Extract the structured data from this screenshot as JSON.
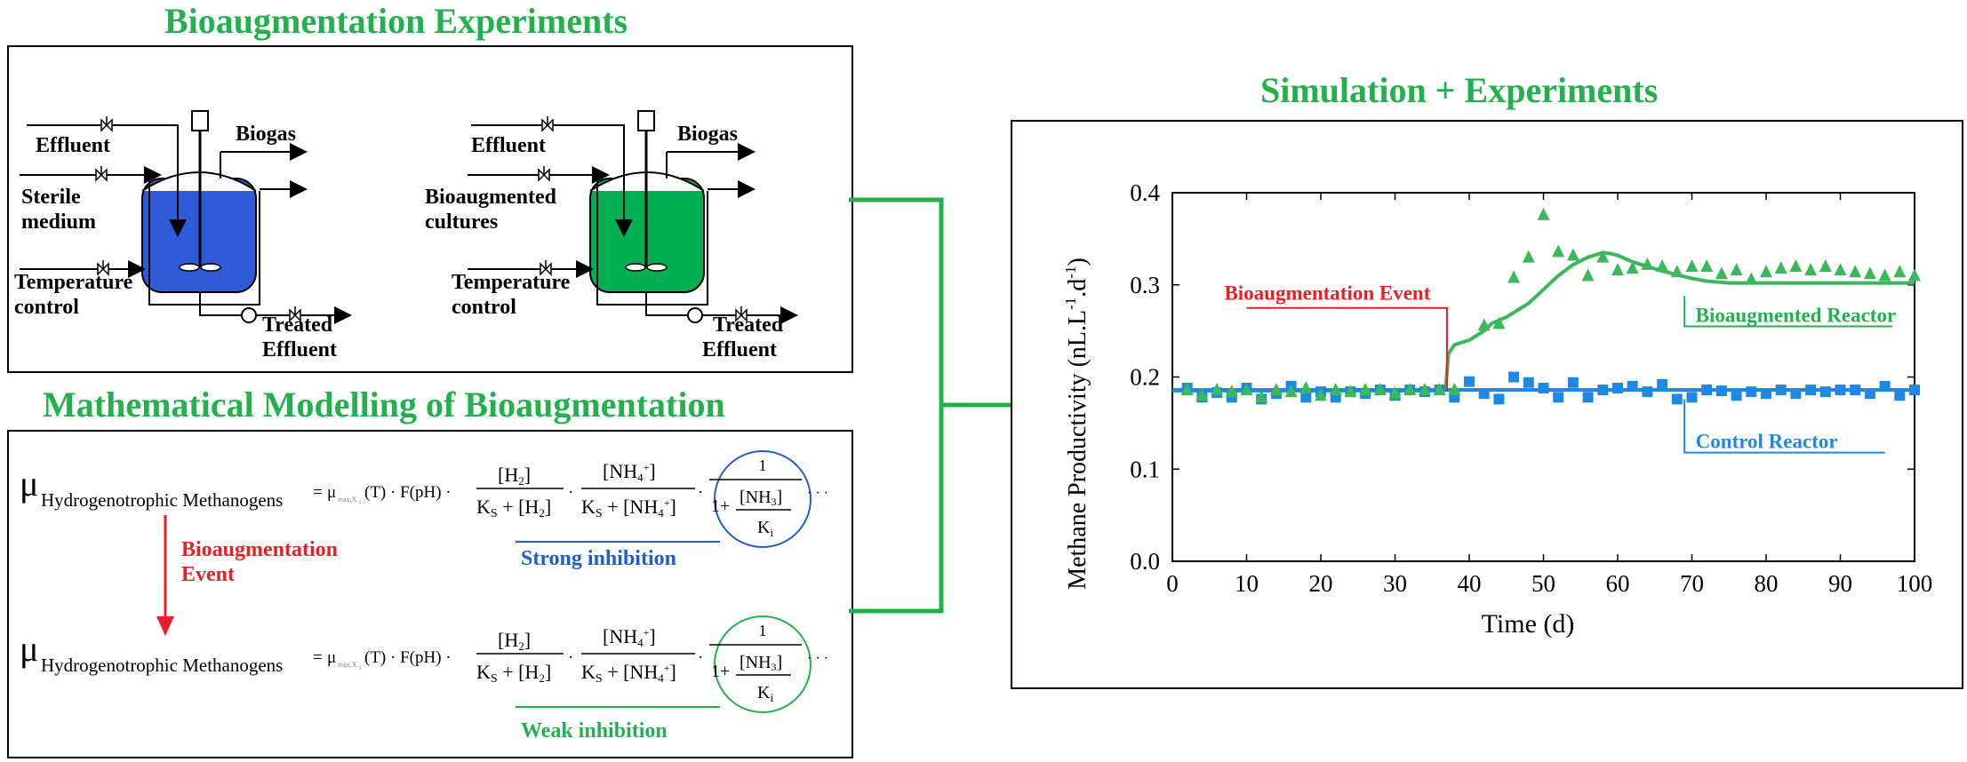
{
  "titles": {
    "bioaugmentation_experiments": "Bioaugmentation  Experiments",
    "mathematical_modelling": "Mathematical  Modelling  of  Bioaugmentation",
    "simulation_experiments": "Simulation  + Experiments"
  },
  "reactor_control": {
    "effluent": "Effluent",
    "feed_line1": "Sterile",
    "feed_line2": "medium",
    "temp_line1": "Temperature",
    "temp_line2": "control",
    "biogas": "Biogas",
    "treated_line1": "Treated",
    "treated_line2": "Effluent",
    "liquid_color": "#2f5bd8"
  },
  "reactor_bio": {
    "effluent": "Effluent",
    "feed_line1": "Bioaugmented",
    "feed_line2": "cultures",
    "temp_line1": "Temperature",
    "temp_line2": "control",
    "biogas": "Biogas",
    "treated_line1": "Treated",
    "treated_line2": "Effluent",
    "liquid_color": "#00b050"
  },
  "equations": {
    "mu": "μ",
    "mu_subscript": "Hydrogenotrophic Methanogens",
    "equals": "=",
    "mu_max": "μ",
    "mu_max_sub": "max,X",
    "mu_max_sub2": "i",
    "temp_term": "(T) · F(pH) ·",
    "h2_num": "[H",
    "h2_sub": "2",
    "h2_close": "]",
    "ks": "K",
    "ks_sub": "S",
    "plus": " + ",
    "dot": "·",
    "nh4_num": "[NH",
    "nh4_sub": "4",
    "nh4_sup": "+",
    "nh4_close": "]",
    "one": "1",
    "one_plus": "1+",
    "nh3": "[NH",
    "nh3_sub": "3",
    "nh3_close": "]",
    "ki": "K",
    "ki_sub": "i",
    "ellipsis": "· · ·",
    "event_line1": "Bioaugmentation",
    "event_line2": "Event",
    "strong_inhibition": "Strong inhibition",
    "weak_inhibition": "Weak inhibition",
    "strong_color": "#1f5fc8",
    "weak_color": "#22b14c",
    "event_color": "#ee1c24"
  },
  "chart_data": {
    "type": "scatter",
    "xlabel": "Time (d)",
    "ylabel": "Methane Productivity (nL.L",
    "ylabel_sup1": "-1",
    "ylabel_mid": ".d",
    "ylabel_sup2": "-1",
    "ylabel_end": ")",
    "xlim": [
      0,
      100
    ],
    "ylim": [
      0,
      0.4
    ],
    "xticks": [
      0,
      10,
      20,
      30,
      40,
      50,
      60,
      70,
      80,
      90,
      100
    ],
    "yticks": [
      0.0,
      0.1,
      0.2,
      0.3,
      0.4
    ],
    "ytick_labels": [
      "0.0",
      "0.1",
      "0.2",
      "0.3",
      "0.4"
    ],
    "annotations": {
      "event": "Bioaugmentation Event",
      "event_x": 37,
      "bio_reactor": "Bioaugmented Reactor",
      "control_reactor": "Control Reactor"
    },
    "series": [
      {
        "name": "Control Reactor",
        "marker": "square",
        "color": "#1e88e5",
        "x": [
          2,
          4,
          6,
          8,
          10,
          12,
          14,
          16,
          18,
          20,
          22,
          24,
          26,
          28,
          30,
          32,
          34,
          36,
          38,
          40,
          42,
          44,
          46,
          48,
          50,
          52,
          54,
          56,
          58,
          60,
          62,
          64,
          66,
          68,
          70,
          72,
          74,
          76,
          78,
          80,
          82,
          84,
          86,
          88,
          90,
          92,
          94,
          96,
          98,
          100
        ],
        "y": [
          0.188,
          0.178,
          0.183,
          0.178,
          0.188,
          0.176,
          0.182,
          0.19,
          0.178,
          0.184,
          0.178,
          0.184,
          0.182,
          0.186,
          0.18,
          0.186,
          0.184,
          0.186,
          0.178,
          0.195,
          0.182,
          0.176,
          0.2,
          0.194,
          0.188,
          0.178,
          0.194,
          0.178,
          0.186,
          0.188,
          0.19,
          0.184,
          0.192,
          0.176,
          0.178,
          0.186,
          0.185,
          0.18,
          0.184,
          0.182,
          0.186,
          0.182,
          0.186,
          0.184,
          0.186,
          0.186,
          0.182,
          0.19,
          0.18,
          0.186
        ]
      },
      {
        "name": "Bioaugmented Reactor",
        "marker": "triangle",
        "color": "#3cb85c",
        "x": [
          2,
          4,
          6,
          8,
          10,
          12,
          14,
          16,
          18,
          20,
          22,
          24,
          26,
          28,
          30,
          32,
          34,
          36,
          38,
          42,
          44,
          46,
          48,
          50,
          52,
          54,
          56,
          58,
          60,
          62,
          64,
          66,
          68,
          70,
          72,
          74,
          76,
          78,
          80,
          82,
          84,
          86,
          88,
          90,
          92,
          94,
          96,
          98,
          100
        ],
        "y": [
          0.186,
          0.18,
          0.186,
          0.184,
          0.186,
          0.178,
          0.186,
          0.184,
          0.188,
          0.18,
          0.186,
          0.184,
          0.186,
          0.186,
          0.182,
          0.186,
          0.186,
          0.186,
          0.186,
          0.256,
          0.258,
          0.308,
          0.33,
          0.376,
          0.336,
          0.332,
          0.31,
          0.33,
          0.316,
          0.318,
          0.322,
          0.32,
          0.314,
          0.32,
          0.32,
          0.312,
          0.316,
          0.306,
          0.314,
          0.318,
          0.32,
          0.316,
          0.32,
          0.316,
          0.314,
          0.312,
          0.31,
          0.314,
          0.31
        ]
      },
      {
        "name": "",
        "type": "line",
        "color": "#3cb85c",
        "x": [
          0,
          5,
          10,
          15,
          20,
          25,
          30,
          35,
          36.8,
          37.2,
          38,
          40,
          42,
          43,
          45,
          48,
          50,
          52,
          54,
          56,
          58,
          59,
          60,
          62,
          64,
          66,
          68,
          70,
          72,
          75,
          80,
          85,
          90,
          95,
          100
        ],
        "y": [
          0.185,
          0.185,
          0.185,
          0.185,
          0.185,
          0.185,
          0.185,
          0.185,
          0.186,
          0.225,
          0.235,
          0.24,
          0.25,
          0.258,
          0.265,
          0.28,
          0.295,
          0.31,
          0.322,
          0.33,
          0.335,
          0.334,
          0.332,
          0.325,
          0.32,
          0.315,
          0.311,
          0.307,
          0.304,
          0.302,
          0.302,
          0.302,
          0.302,
          0.302,
          0.302
        ]
      },
      {
        "name": "",
        "type": "line",
        "color": "#1e88e5",
        "x": [
          0,
          100
        ],
        "y": [
          0.186,
          0.186
        ]
      }
    ]
  }
}
